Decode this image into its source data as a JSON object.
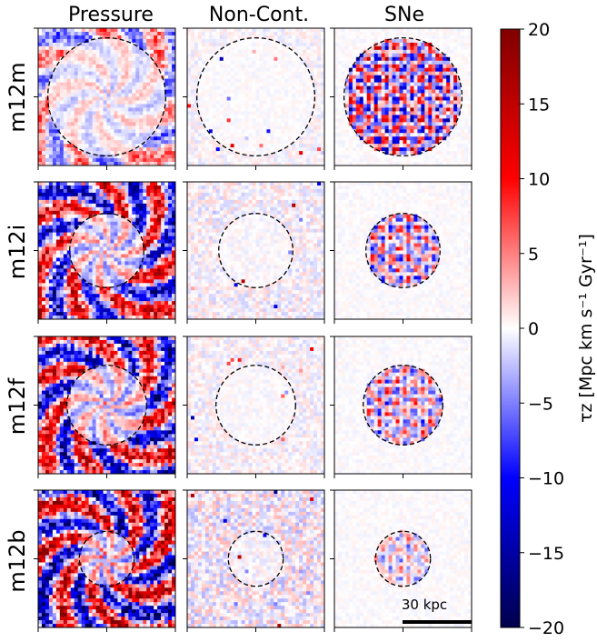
{
  "chart_data": {
    "type": "heatmap",
    "columns": [
      "Pressure",
      "Non-Cont.",
      "SNe"
    ],
    "rows": [
      "m12m",
      "m12i",
      "m12f",
      "m12b"
    ],
    "panel_circle_radius": [
      [
        0.43,
        0.43,
        0.43
      ],
      [
        0.27,
        0.27,
        0.27
      ],
      [
        0.29,
        0.29,
        0.29
      ],
      [
        0.2,
        0.2,
        0.2
      ]
    ],
    "panel_intensity": [
      [
        0.45,
        0.12,
        0.55
      ],
      [
        0.85,
        0.18,
        0.4
      ],
      [
        0.9,
        0.15,
        0.35
      ],
      [
        1.0,
        0.28,
        0.25
      ]
    ],
    "colorbar": {
      "min": -20,
      "max": 20,
      "ticks": [
        20,
        15,
        10,
        5,
        0,
        -5,
        -10,
        -15,
        -20
      ],
      "tick_labels": [
        "20",
        "15",
        "10",
        "5",
        "0",
        "−5",
        "−10",
        "−15",
        "−20"
      ],
      "label": "τz [Mpc km s⁻¹ Gyr⁻¹]",
      "cmap": "seismic",
      "colors": [
        "#00004c",
        "#0000ff",
        "#ffffff",
        "#ff0000",
        "#800000"
      ]
    },
    "scale_bar": {
      "label": "30 kpc",
      "length_kpc": 30
    }
  }
}
